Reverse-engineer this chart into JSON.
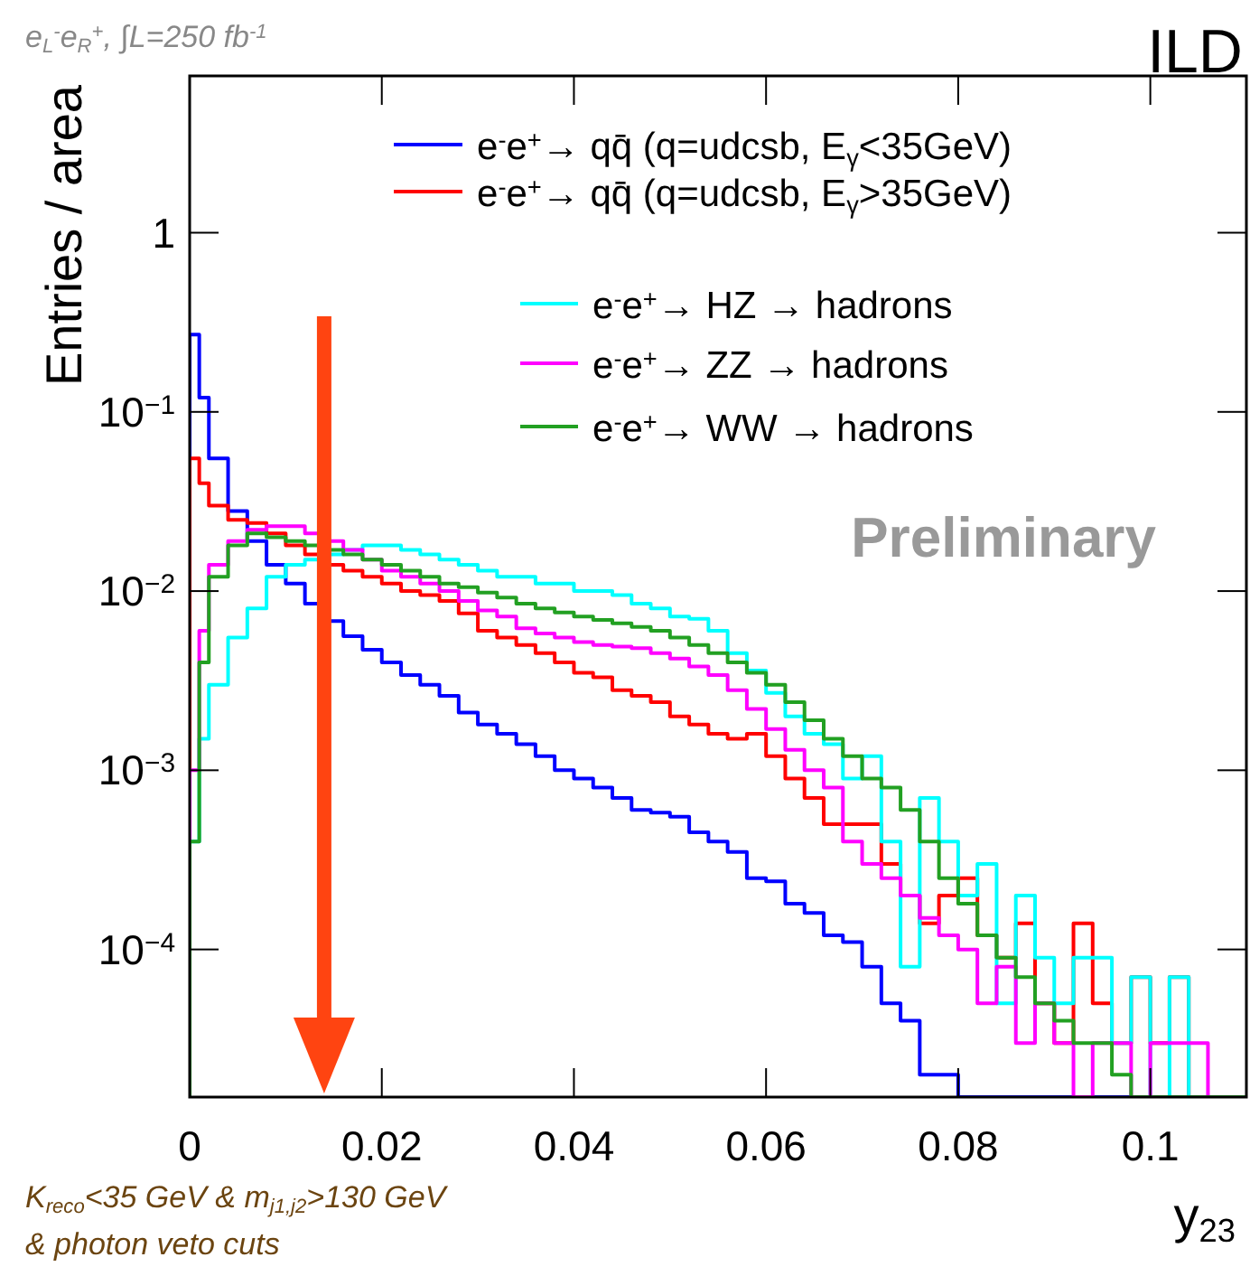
{
  "chart_data": {
    "type": "histogram",
    "title": "e$_{L}$$^{-}$e$_{R}$$^{+}$, ∫L=250 fb$^{-1}$",
    "xlabel": "y$_{23}$",
    "ylabel": "Entries / area",
    "annotations": [
      "ILD",
      "Preliminary",
      "K$_{reco}$<35 GeV & m$_{j1,j2}$>130 GeV",
      "& photon veto cuts"
    ],
    "bins": [
      0,
      0.001,
      0.002,
      0.004,
      0.006,
      0.008,
      0.01,
      0.012,
      0.014,
      0.016,
      0.018,
      0.02,
      0.022,
      0.024,
      0.026,
      0.028,
      0.03,
      0.032,
      0.034,
      0.036,
      0.038,
      0.04,
      0.042,
      0.044,
      0.046,
      0.048,
      0.05,
      0.052,
      0.054,
      0.056,
      0.058,
      0.06,
      0.062,
      0.064,
      0.066,
      0.068,
      0.07,
      0.072,
      0.074,
      0.076,
      0.078,
      0.08,
      0.082,
      0.084,
      0.086,
      0.088,
      0.09,
      0.092,
      0.094,
      0.096,
      0.098,
      0.1,
      0.102,
      0.104,
      0.106,
      0.108,
      0.11
    ],
    "series": [
      {
        "name": "e$^{-}$e$^{+}$→ qq̄ (q=udcsb, E$_{γ}$<35GeV)",
        "color": "#0000ff",
        "values": [
          0.27,
          0.12,
          0.055,
          0.028,
          0.019,
          0.014,
          0.011,
          0.0085,
          0.0068,
          0.0056,
          0.0047,
          0.004,
          0.0034,
          0.003,
          0.0026,
          0.0021,
          0.0018,
          0.0016,
          0.0014,
          0.0012,
          0.001,
          0.0009,
          0.0008,
          0.0007,
          0.0006,
          0.00058,
          0.00055,
          0.00045,
          0.0004,
          0.00035,
          0.00025,
          0.00024,
          0.00018,
          0.00016,
          0.00012,
          0.00011,
          8e-05,
          5e-05,
          4e-05,
          2e-05,
          2e-05,
          null,
          null,
          null,
          null,
          null,
          null,
          null,
          null,
          null,
          null,
          null,
          null,
          null,
          null,
          null
        ]
      },
      {
        "name": "e$^{-}$e$^{+}$→ qq̄ (q=udcsb, E$_{γ}$>35GeV)",
        "color": "#ff0000",
        "values": [
          0.055,
          0.04,
          0.03,
          0.025,
          0.024,
          0.021,
          0.018,
          0.016,
          0.014,
          0.013,
          0.012,
          0.011,
          0.01,
          0.0095,
          0.0088,
          0.0075,
          0.006,
          0.0055,
          0.005,
          0.0045,
          0.004,
          0.0035,
          0.0033,
          0.0028,
          0.0026,
          0.0024,
          0.002,
          0.0018,
          0.0016,
          0.0015,
          0.0016,
          0.0012,
          0.0009,
          0.0007,
          0.0005,
          0.0005,
          0.0005,
          0.0003,
          0.0002,
          0.00014,
          0.0002,
          0.00025,
          0.00012,
          9e-05,
          0.00014,
          5e-05,
          3e-05,
          0.00014,
          5e-05,
          3e-05,
          7e-05,
          3e-05,
          7e-05,
          null,
          null,
          null
        ]
      },
      {
        "name": "e$^{-}$e$^{+}$→ HZ → hadrons",
        "color": "#00ffff",
        "values": [
          0.0004,
          0.0015,
          0.003,
          0.0055,
          0.008,
          0.012,
          0.014,
          0.015,
          0.016,
          0.017,
          0.018,
          0.018,
          0.017,
          0.016,
          0.015,
          0.014,
          0.013,
          0.012,
          0.012,
          0.011,
          0.011,
          0.01,
          0.01,
          0.0095,
          0.0085,
          0.008,
          0.0072,
          0.007,
          0.006,
          0.0045,
          0.0036,
          0.0027,
          0.002,
          0.0016,
          0.0014,
          0.0009,
          0.0012,
          0.0004,
          8e-05,
          0.0007,
          0.0004,
          0.0002,
          0.0003,
          5e-05,
          0.0002,
          9e-05,
          5e-05,
          9e-05,
          9e-05,
          3e-05,
          7e-05,
          null,
          7e-05,
          null,
          null,
          null
        ]
      },
      {
        "name": "e$^{-}$e$^{+}$→ ZZ → hadrons",
        "color": "#ff00ff",
        "values": [
          0.001,
          0.006,
          0.014,
          0.019,
          0.022,
          0.023,
          0.023,
          0.021,
          0.019,
          0.017,
          0.015,
          0.013,
          0.012,
          0.011,
          0.01,
          0.0088,
          0.0078,
          0.0072,
          0.0062,
          0.0058,
          0.0055,
          0.0052,
          0.005,
          0.0049,
          0.0048,
          0.0045,
          0.0042,
          0.0038,
          0.0034,
          0.0028,
          0.0022,
          0.0017,
          0.0013,
          0.001,
          0.0008,
          0.0004,
          0.0003,
          0.00025,
          0.0002,
          0.00015,
          0.00012,
          0.0001,
          5e-05,
          8e-05,
          3e-05,
          5e-05,
          3e-05,
          null,
          3e-05,
          3e-05,
          null,
          3e-05,
          3e-05,
          3e-05,
          null,
          null
        ]
      },
      {
        "name": "e$^{-}$e$^{+}$→ WW → hadrons",
        "color": "#22a022",
        "values": [
          0.0004,
          0.004,
          0.012,
          0.018,
          0.021,
          0.02,
          0.019,
          0.018,
          0.017,
          0.016,
          0.015,
          0.014,
          0.013,
          0.012,
          0.011,
          0.0105,
          0.0098,
          0.0092,
          0.0085,
          0.008,
          0.0076,
          0.0072,
          0.0069,
          0.0066,
          0.0063,
          0.006,
          0.0055,
          0.005,
          0.0045,
          0.004,
          0.0035,
          0.003,
          0.0024,
          0.0019,
          0.0015,
          0.0012,
          0.0009,
          0.0008,
          0.0006,
          0.0004,
          0.00025,
          0.00018,
          0.00012,
          9e-05,
          7e-05,
          5e-05,
          4e-05,
          3e-05,
          3e-05,
          2e-05,
          null,
          null,
          null,
          null,
          null,
          null
        ]
      }
    ],
    "xlim": [
      0,
      0.11
    ],
    "xticks": [
      0,
      0.02,
      0.04,
      0.06,
      0.08,
      {
        "value": 0.1,
        "label": "0.1"
      }
    ],
    "ylim": [
      1.5e-05,
      7.5
    ],
    "yticks": [
      {
        "value": 0.0001,
        "label": "10$^{−4}$"
      },
      {
        "value": 0.001,
        "label": "10$^{−3}$"
      },
      {
        "value": 0.01,
        "label": "10$^{−2}$"
      },
      {
        "value": 0.1,
        "label": "10$^{−1}$"
      },
      1
    ],
    "log": "y",
    "grid": false,
    "legend": "top right",
    "ref_lines": [
      {
        "axis": "x",
        "value": 0.014,
        "color": "#ff4411"
      }
    ]
  }
}
